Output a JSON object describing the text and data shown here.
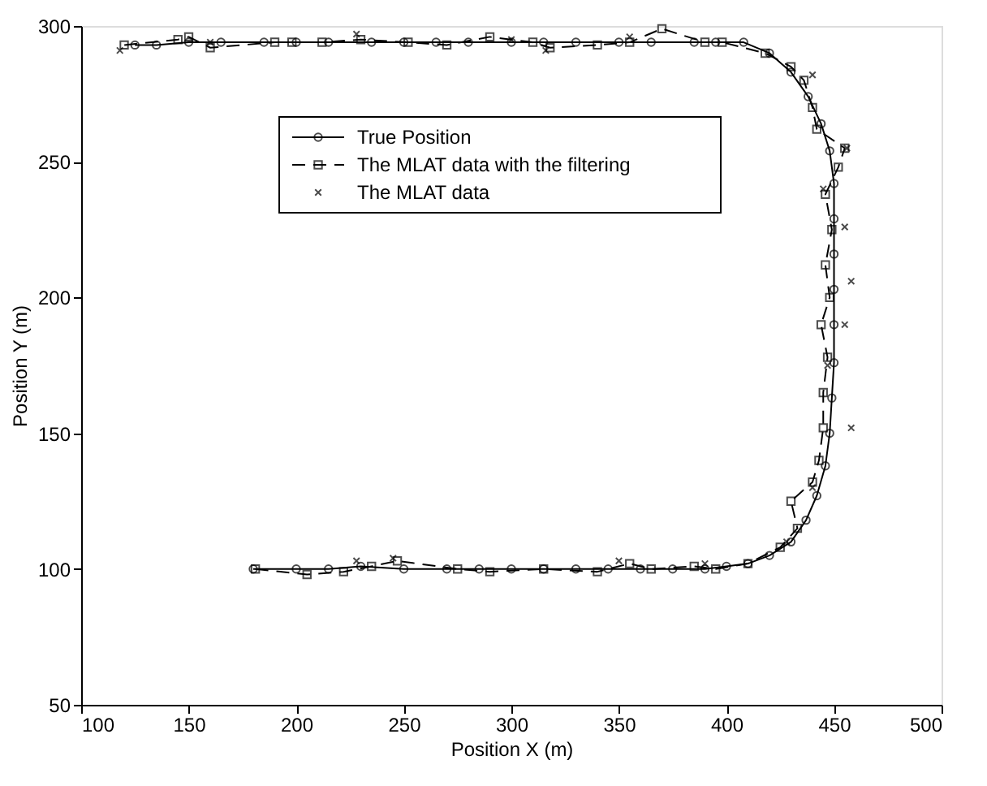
{
  "chart_data": {
    "type": "line",
    "xlabel": "Position X (m)",
    "ylabel": "Position Y (m)",
    "xlim": [
      100,
      500
    ],
    "xticks": [
      100,
      150,
      200,
      250,
      300,
      350,
      400,
      450,
      500
    ],
    "ylim": [
      50,
      300
    ],
    "yticks": [
      50,
      100,
      150,
      200,
      250,
      300
    ],
    "grid": false,
    "legend": "top",
    "series": [
      {
        "name": "True Position",
        "color": "#000000",
        "marker": "circle",
        "line_style": "solid",
        "x": [
          180,
          200,
          215,
          230,
          250,
          270,
          285,
          300,
          315,
          330,
          345,
          360,
          375,
          390,
          400,
          410,
          420,
          430,
          437,
          442,
          446,
          448,
          449,
          450,
          450,
          450,
          450,
          450,
          450,
          448,
          444,
          438,
          430,
          420,
          408,
          395,
          385,
          365,
          350,
          330,
          315,
          300,
          280,
          265,
          250,
          235,
          215,
          200,
          185,
          165,
          150,
          135,
          125
        ],
        "values": [
          100,
          100,
          100,
          101,
          100,
          100,
          100,
          100,
          100,
          100,
          100,
          100,
          100,
          100,
          101,
          102,
          105,
          110,
          118,
          127,
          138,
          150,
          163,
          176,
          190,
          203,
          216,
          229,
          242,
          254,
          264,
          274,
          283,
          290,
          294,
          294,
          294,
          294,
          294,
          294,
          294,
          294,
          294,
          294,
          294,
          294,
          294,
          294,
          294,
          294,
          294,
          293,
          293
        ]
      },
      {
        "name": "The MLAT data with the filtering",
        "color": "#000000",
        "marker": "square",
        "line_style": "dashed",
        "x": [
          181,
          205,
          222,
          235,
          247,
          275,
          290,
          315,
          340,
          355,
          365,
          385,
          395,
          410,
          425,
          433,
          430,
          440,
          443,
          445,
          445,
          447,
          444,
          448,
          446,
          449,
          446,
          452,
          455,
          442,
          440,
          436,
          430,
          418,
          398,
          390,
          370,
          355,
          340,
          318,
          310,
          290,
          270,
          252,
          230,
          212,
          198,
          190,
          160,
          150,
          145,
          120
        ],
        "values": [
          100,
          98,
          99,
          101,
          103,
          100,
          99,
          100,
          99,
          102,
          100,
          101,
          100,
          102,
          108,
          115,
          125,
          132,
          140,
          152,
          165,
          178,
          190,
          200,
          212,
          225,
          238,
          248,
          255,
          262,
          270,
          280,
          285,
          290,
          294,
          294,
          299,
          294,
          293,
          292,
          294,
          296,
          293,
          294,
          295,
          294,
          294,
          294,
          292,
          296,
          295,
          293
        ]
      },
      {
        "name": "The MLAT data",
        "color": "#000000",
        "type": "scatter",
        "marker": "cross",
        "x": [
          118,
          160,
          228,
          228,
          245,
          316,
          300,
          355,
          350,
          390,
          428,
          440,
          447,
          458,
          458,
          455,
          455,
          456,
          440,
          445
        ],
        "values": [
          291,
          294,
          297,
          103,
          104,
          291,
          295,
          296,
          103,
          102,
          110,
          130,
          175,
          152,
          206,
          226,
          190,
          255,
          282,
          240
        ]
      }
    ]
  }
}
